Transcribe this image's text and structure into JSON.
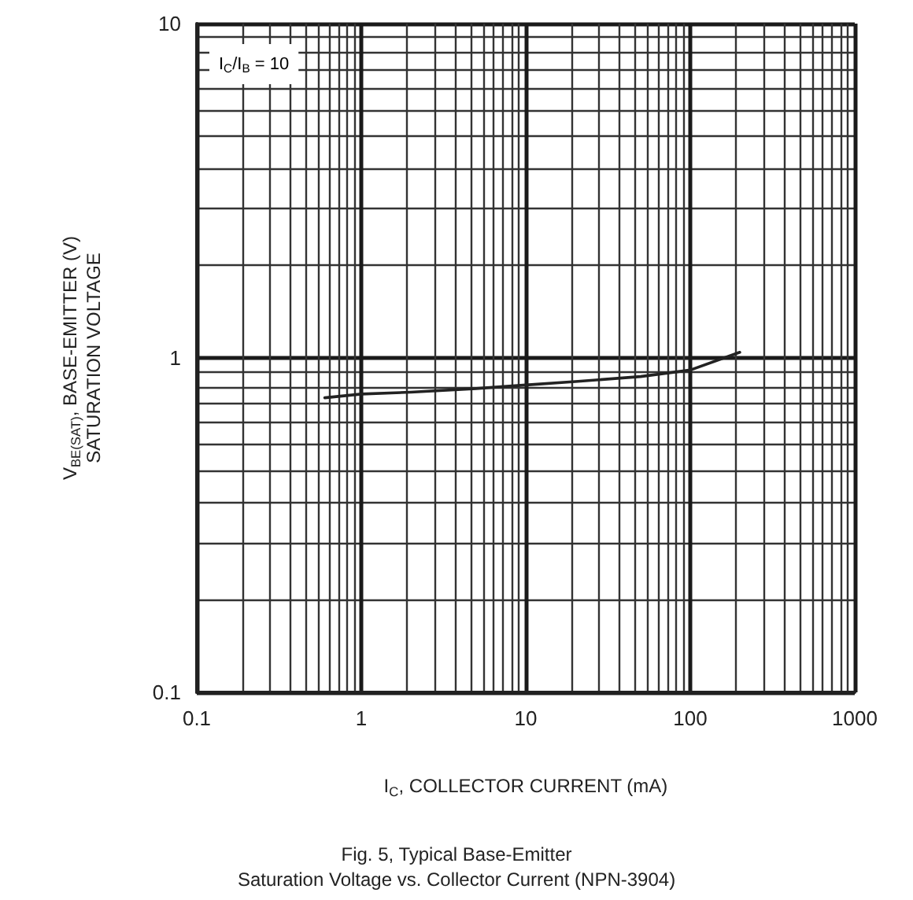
{
  "chart_data": {
    "type": "line",
    "title": "Fig. 5, Typical Base-Emitter\nSaturation Voltage vs. Collector Current (NPN-3904)",
    "xlabel": "I$_{C}$, COLLECTOR CURRENT (mA)",
    "ylabel": "V$_{BE(SAT)}$, BASE-EMITTER (V)\nSATURATION VOLTAGE",
    "annotations": [
      "I$_{C}$/I$_{B}$ = 10"
    ],
    "x": [
      0.6,
      1,
      2,
      5,
      10,
      20,
      50,
      100,
      200
    ],
    "series": [
      {
        "color": "#222222",
        "values": [
          0.76,
          0.78,
          0.79,
          0.81,
          0.83,
          0.85,
          0.88,
          0.92,
          1.04
        ]
      }
    ],
    "xlim": [
      0.1,
      1000
    ],
    "ylim": [
      0.1,
      10
    ],
    "xticks": [
      0.1,
      1,
      10,
      100,
      1000
    ],
    "yticks": [
      0.1,
      1,
      10
    ],
    "log": "xy",
    "grid": true,
    "marker": "none",
    "line_style": "solid"
  }
}
